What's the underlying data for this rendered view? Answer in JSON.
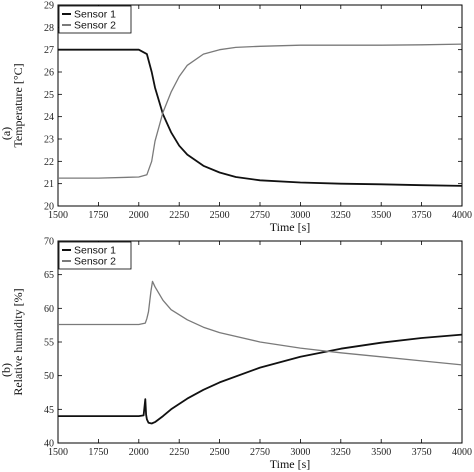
{
  "colors": {
    "sensor1": "#111111",
    "sensor2": "#7a7a7a",
    "axis": "#000000"
  },
  "chart_data": [
    {
      "type": "line",
      "panel_label": "(a)",
      "xlabel": "Time [s]",
      "ylabel": "Temperature [°C]",
      "xlim": [
        1500,
        4000
      ],
      "ylim": [
        20,
        29
      ],
      "x_ticks": [
        1500,
        1750,
        2000,
        2250,
        2500,
        2750,
        3000,
        3250,
        3500,
        3750,
        4000
      ],
      "y_ticks": [
        20,
        21,
        22,
        23,
        24,
        25,
        26,
        27,
        28,
        29
      ],
      "grid": false,
      "legend": "top-left",
      "series": [
        {
          "name": "Sensor 1",
          "x": [
            1500,
            1750,
            1900,
            2000,
            2050,
            2080,
            2100,
            2150,
            2200,
            2250,
            2300,
            2400,
            2500,
            2600,
            2750,
            3000,
            3250,
            3500,
            3750,
            4000
          ],
          "y": [
            27.0,
            27.0,
            27.0,
            27.0,
            26.8,
            26.0,
            25.3,
            24.1,
            23.3,
            22.7,
            22.3,
            21.8,
            21.5,
            21.3,
            21.15,
            21.05,
            21.0,
            20.97,
            20.93,
            20.9
          ]
        },
        {
          "name": "Sensor 2",
          "x": [
            1500,
            1750,
            2000,
            2050,
            2080,
            2100,
            2150,
            2200,
            2250,
            2300,
            2400,
            2500,
            2600,
            2750,
            3000,
            3250,
            3500,
            3750,
            4000
          ],
          "y": [
            21.25,
            21.25,
            21.3,
            21.4,
            22.0,
            22.9,
            24.2,
            25.1,
            25.8,
            26.3,
            26.8,
            27.0,
            27.1,
            27.15,
            27.2,
            27.2,
            27.2,
            27.22,
            27.25
          ]
        }
      ]
    },
    {
      "type": "line",
      "panel_label": "(b)",
      "xlabel": "Time [s]",
      "ylabel": "Relative humidity [%]",
      "xlim": [
        1500,
        4000
      ],
      "ylim": [
        40,
        70
      ],
      "x_ticks": [
        1500,
        1750,
        2000,
        2250,
        2500,
        2750,
        3000,
        3250,
        3500,
        3750,
        4000
      ],
      "y_ticks": [
        40,
        45,
        50,
        55,
        60,
        65,
        70
      ],
      "grid": false,
      "legend": "top-left",
      "series": [
        {
          "name": "Sensor 1",
          "x": [
            1500,
            1750,
            2000,
            2030,
            2040,
            2045,
            2050,
            2060,
            2080,
            2100,
            2150,
            2200,
            2300,
            2400,
            2500,
            2750,
            3000,
            3250,
            3500,
            3750,
            4000
          ],
          "y": [
            44.0,
            44.0,
            44.0,
            44.1,
            46.5,
            44.2,
            43.5,
            43.0,
            42.9,
            43.1,
            44.0,
            45.0,
            46.6,
            47.9,
            49.0,
            51.2,
            52.8,
            54.0,
            54.9,
            55.6,
            56.1
          ]
        },
        {
          "name": "Sensor 2",
          "x": [
            1500,
            1750,
            2000,
            2040,
            2050,
            2060,
            2075,
            2085,
            2100,
            2150,
            2200,
            2300,
            2400,
            2500,
            2750,
            3000,
            3250,
            3500,
            3750,
            4000
          ],
          "y": [
            57.6,
            57.6,
            57.6,
            57.8,
            58.5,
            59.5,
            62.5,
            64.0,
            63.2,
            61.2,
            59.8,
            58.3,
            57.2,
            56.4,
            55.0,
            54.1,
            53.4,
            52.8,
            52.2,
            51.6
          ]
        }
      ]
    }
  ]
}
